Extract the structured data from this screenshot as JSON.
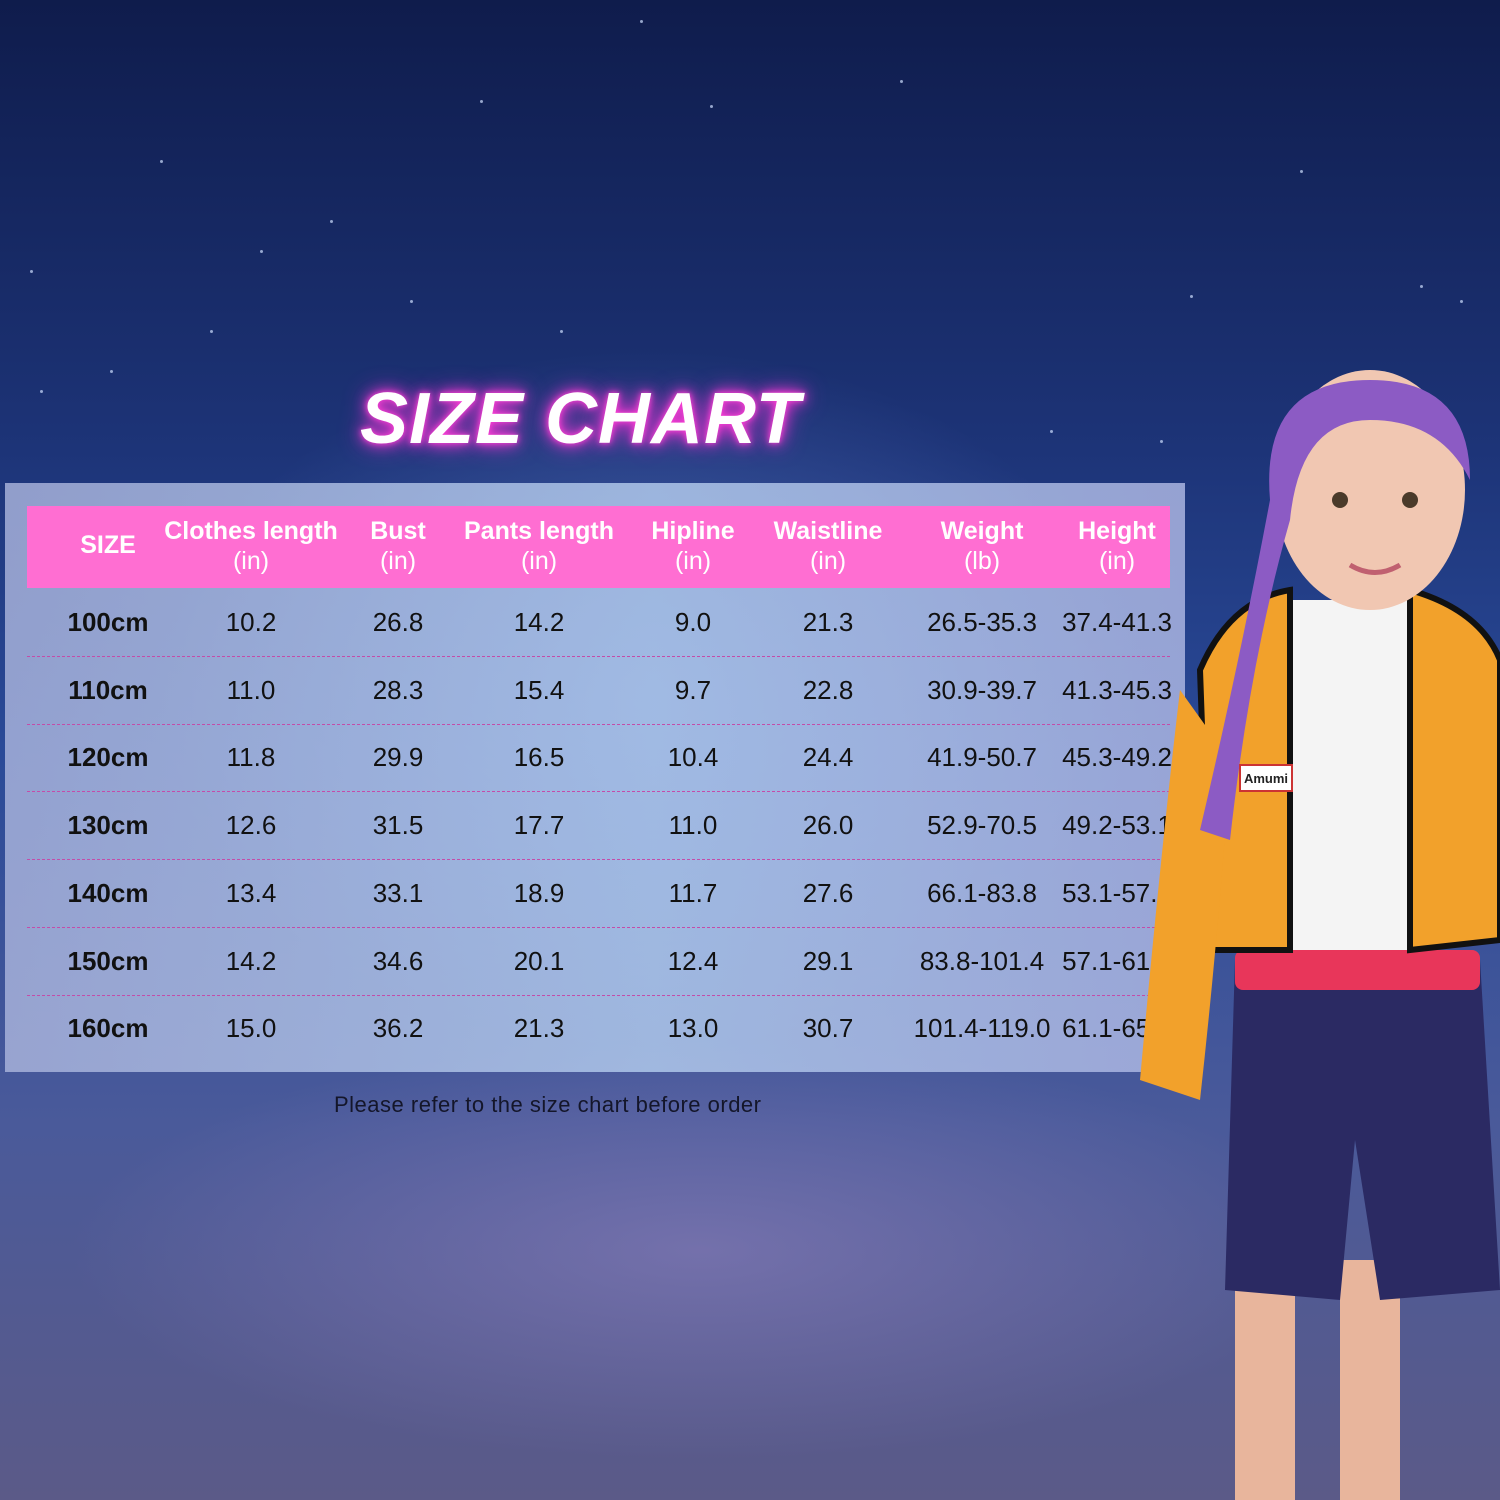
{
  "title": "SIZE CHART",
  "note": "Please refer to the size chart before order",
  "colors": {
    "header": "#ff6ed2",
    "title_glow": "#ff3fd6",
    "divider": "#c44ca8"
  },
  "chart_data": {
    "type": "table",
    "title": "SIZE CHART",
    "columns": [
      {
        "label": "SIZE",
        "unit": ""
      },
      {
        "label": "Clothes length",
        "unit": "(in)"
      },
      {
        "label": "Bust",
        "unit": "(in)"
      },
      {
        "label": "Pants length",
        "unit": "(in)"
      },
      {
        "label": "Hipline",
        "unit": "(in)"
      },
      {
        "label": "Waistline",
        "unit": "(in)"
      },
      {
        "label": "Weight",
        "unit": "(lb)"
      },
      {
        "label": "Height",
        "unit": "(in)"
      }
    ],
    "rows": [
      [
        "100cm",
        "10.2",
        "26.8",
        "14.2",
        "9.0",
        "21.3",
        "26.5-35.3",
        "37.4-41.3"
      ],
      [
        "110cm",
        "11.0",
        "28.3",
        "15.4",
        "9.7",
        "22.8",
        "30.9-39.7",
        "41.3-45.3"
      ],
      [
        "120cm",
        "11.8",
        "29.9",
        "16.5",
        "10.4",
        "24.4",
        "41.9-50.7",
        "45.3-49.2"
      ],
      [
        "130cm",
        "12.6",
        "31.5",
        "17.7",
        "11.0",
        "26.0",
        "52.9-70.5",
        "49.2-53.1"
      ],
      [
        "140cm",
        "13.4",
        "33.1",
        "18.9",
        "11.7",
        "27.6",
        "66.1-83.8",
        "53.1-57.1"
      ],
      [
        "150cm",
        "14.2",
        "34.6",
        "20.1",
        "12.4",
        "29.1",
        "83.8-101.4",
        "57.1-61.0"
      ],
      [
        "160cm",
        "15.0",
        "36.2",
        "21.3",
        "13.0",
        "30.7",
        "101.4-119.0",
        "61.1-65.0"
      ]
    ]
  },
  "model_image": {
    "jacket_tag": "Amumi"
  }
}
